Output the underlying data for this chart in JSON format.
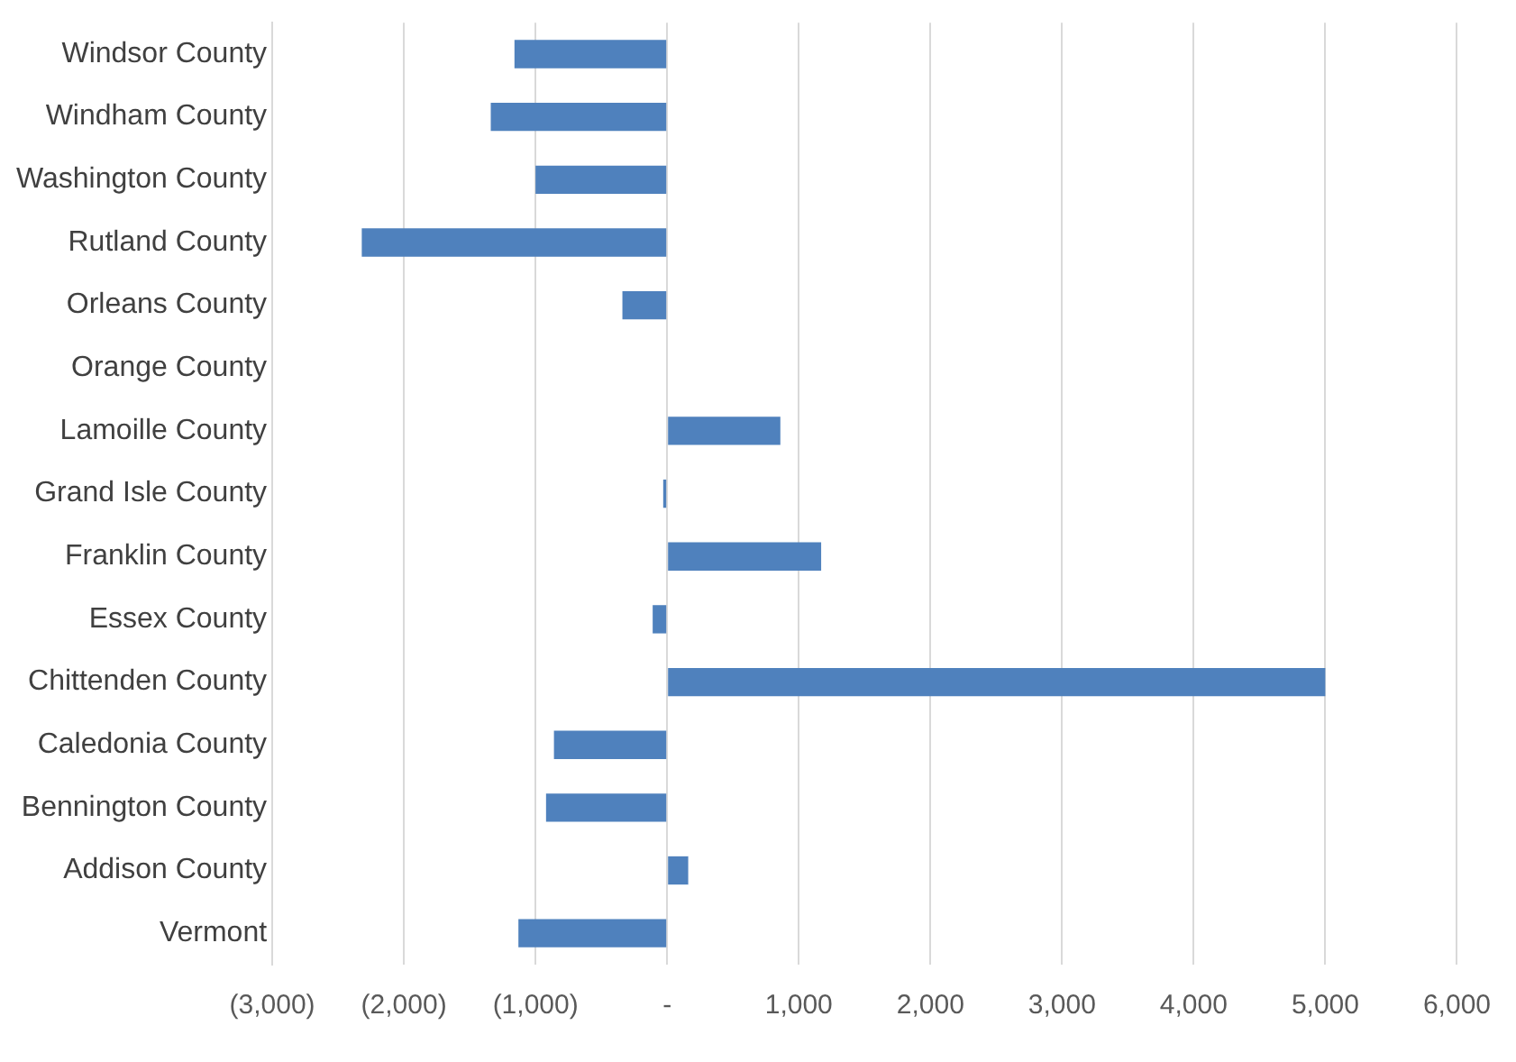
{
  "chart_data": {
    "type": "bar",
    "orientation": "horizontal",
    "categories": [
      "Windsor County",
      "Windham County",
      "Washington County",
      "Rutland County",
      "Orleans County",
      "Orange County",
      "Lamoille County",
      "Grand Isle County",
      "Franklin County",
      "Essex County",
      "Chittenden County",
      "Caledonia County",
      "Bennington County",
      "Addison County",
      "Vermont"
    ],
    "values": [
      -1160,
      -1340,
      -1000,
      -2320,
      -340,
      0,
      860,
      -30,
      1170,
      -110,
      5000,
      -860,
      -920,
      160,
      -1130
    ],
    "color": "#4f81bd",
    "xlim": [
      -3000,
      6000
    ],
    "xticks": [
      {
        "value": -3000,
        "label": "(3,000)"
      },
      {
        "value": -2000,
        "label": "(2,000)"
      },
      {
        "value": -1000,
        "label": "(1,000)"
      },
      {
        "value": 0,
        "label": "-"
      },
      {
        "value": 1000,
        "label": "1,000"
      },
      {
        "value": 2000,
        "label": "2,000"
      },
      {
        "value": 3000,
        "label": "3,000"
      },
      {
        "value": 4000,
        "label": "4,000"
      },
      {
        "value": 5000,
        "label": "5,000"
      },
      {
        "value": 6000,
        "label": "6,000"
      }
    ],
    "grid": "x"
  }
}
